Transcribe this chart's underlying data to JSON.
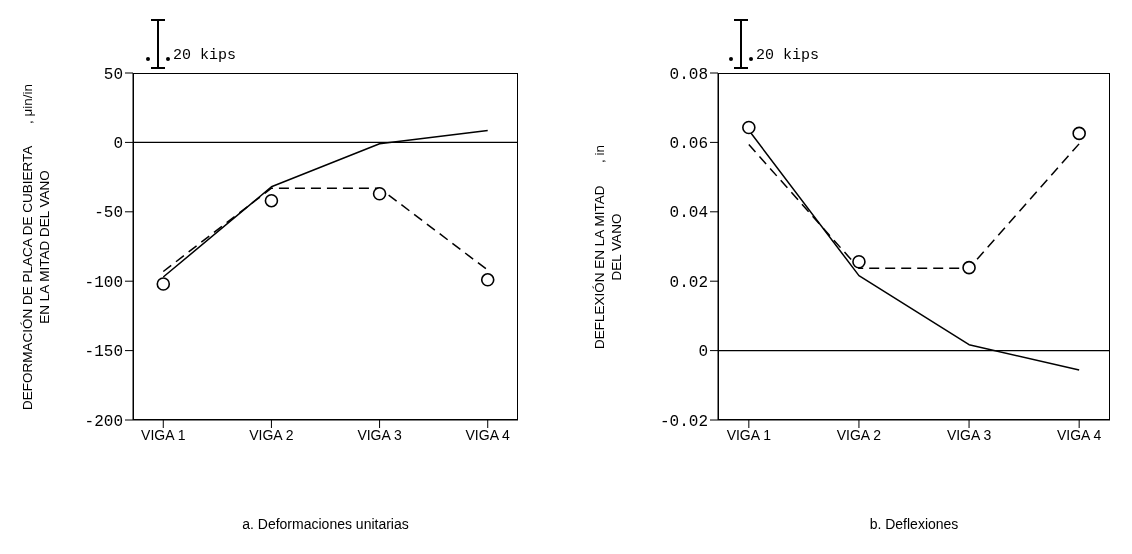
{
  "chart_data": [
    {
      "type": "line",
      "title": "a. Deformaciones unitarias",
      "ylabel": "DEFORMACIÓN DE PLACA DE CUBIERTA      , μin/in\nEN LA MITAD DEL VANO",
      "categories": [
        "VIGA  1",
        "VIGA  2",
        "VIGA  3",
        "VIGA  4"
      ],
      "series": [
        {
          "color": "#000000",
          "line_style": "solid",
          "marker": "none",
          "values": [
            -97,
            -32,
            -1,
            8.5
          ]
        },
        {
          "color": "#000000",
          "line_style": "dashed",
          "marker": "none",
          "values": [
            -93,
            -33,
            -33,
            -92
          ]
        },
        {
          "type": "scatter",
          "color": "#000000",
          "marker": "circle",
          "values": [
            -102,
            -42,
            -37,
            -99
          ]
        }
      ],
      "ylim": [
        -200,
        50
      ],
      "yticks": [
        -200,
        -150,
        -100,
        -50,
        0,
        50
      ],
      "ref_lines": [
        {
          "axis": "y",
          "value": 0,
          "color": "#000000"
        }
      ],
      "annotations": [
        "20 kips"
      ]
    },
    {
      "type": "line",
      "title": "b. Deflexiones",
      "ylabel": "DEFLEXIÓN EN LA MITAD      , in\nDEL VANO",
      "categories": [
        "VIGA  1",
        "VIGA  2",
        "VIGA  3",
        "VIGA  4"
      ],
      "series": [
        {
          "color": "#000000",
          "line_style": "solid",
          "marker": "none",
          "values": [
            0.0635,
            0.0216,
            0.0017,
            -0.0056
          ]
        },
        {
          "color": "#000000",
          "line_style": "dashed",
          "marker": "none",
          "values": [
            0.0594,
            0.0237,
            0.0237,
            0.0596
          ]
        },
        {
          "type": "scatter",
          "color": "#000000",
          "marker": "circle",
          "values": [
            0.0643,
            0.0256,
            0.0239,
            0.0626
          ]
        }
      ],
      "ylim": [
        -0.02,
        0.08
      ],
      "yticks": [
        -0.02,
        0,
        0.02,
        0.04,
        0.06,
        0.08
      ],
      "ref_lines": [
        {
          "axis": "y",
          "value": 0,
          "color": "#000000"
        }
      ],
      "annotations": [
        "20 kips"
      ]
    }
  ]
}
